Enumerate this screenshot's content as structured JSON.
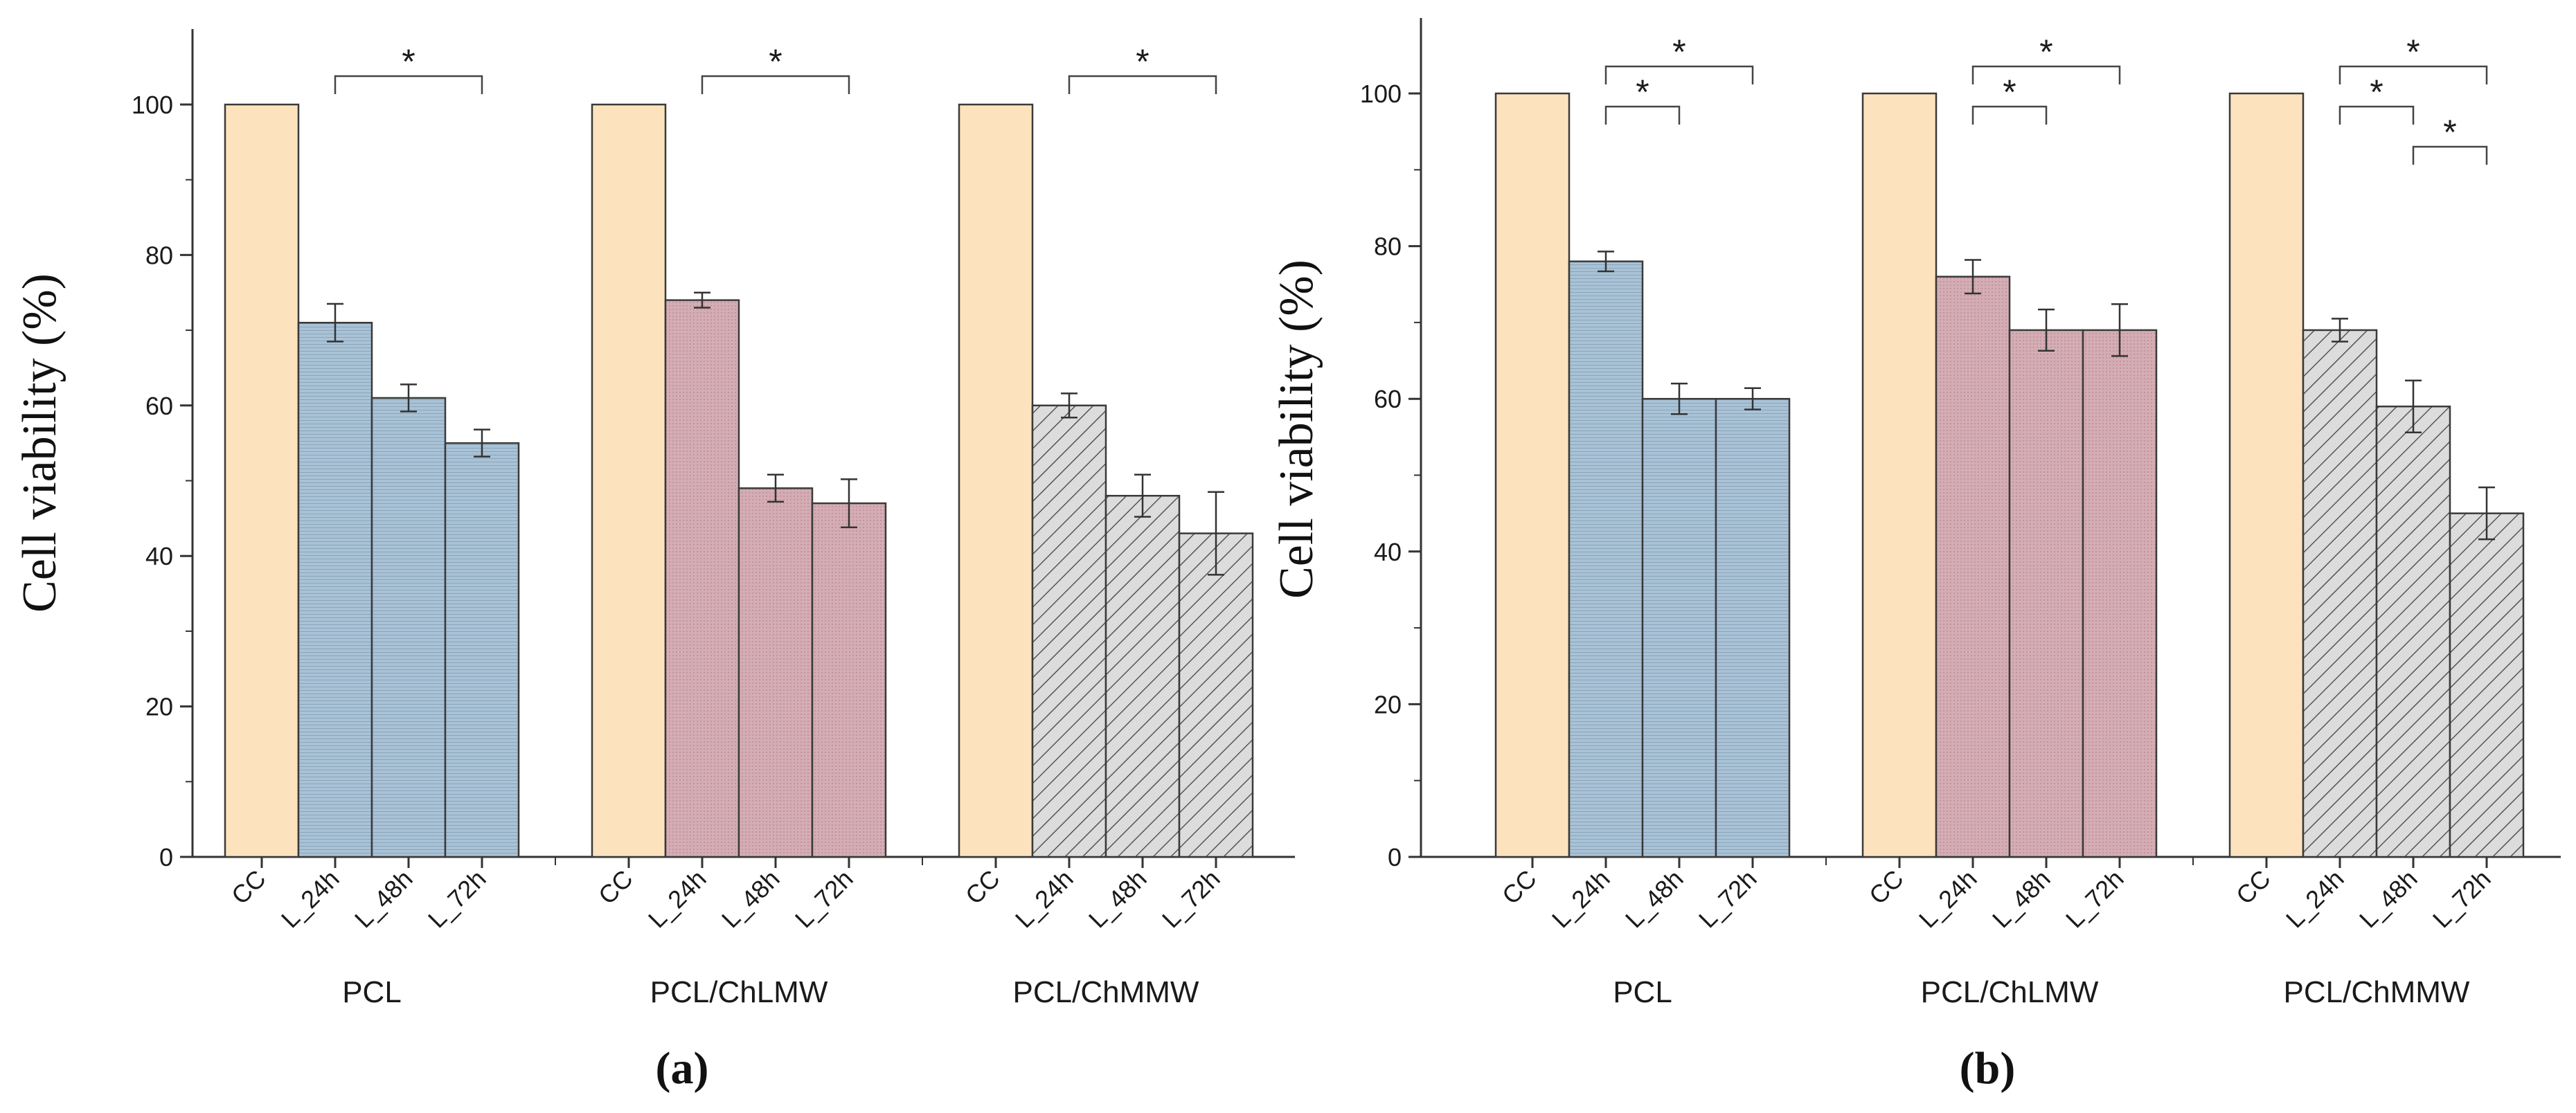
{
  "chart_data": [
    {
      "type": "bar",
      "panel_label": "(a)",
      "ylabel": "Cell viability (%)",
      "xlabel": "",
      "ylim": [
        0,
        110
      ],
      "yticks": [
        "0",
        "20",
        "40",
        "60",
        "80",
        "100"
      ],
      "grid": false,
      "groups": [
        {
          "name": "PCL",
          "pattern": "horizontal-lines",
          "color": "#a9c2d6",
          "bars": [
            {
              "label": "CC",
              "value": 100,
              "error": 0
            },
            {
              "label": "L_24h",
              "value": 71,
              "error": 2.5
            },
            {
              "label": "L_48h",
              "value": 61,
              "error": 1.8
            },
            {
              "label": "L_72h",
              "value": 55,
              "error": 1.8
            }
          ],
          "significance": [
            {
              "from": "L_24h",
              "to": "L_72h",
              "label": "*"
            }
          ]
        },
        {
          "name": "PCL/ChLMW",
          "pattern": "dots",
          "color": "#d4adb4",
          "bars": [
            {
              "label": "CC",
              "value": 100,
              "error": 0
            },
            {
              "label": "L_24h",
              "value": 74,
              "error": 1.0
            },
            {
              "label": "L_48h",
              "value": 49,
              "error": 1.8
            },
            {
              "label": "L_72h",
              "value": 47,
              "error": 3.2
            }
          ],
          "significance": [
            {
              "from": "L_24h",
              "to": "L_72h",
              "label": "*"
            }
          ]
        },
        {
          "name": "PCL/ChMMW",
          "pattern": "diagonal-hatch",
          "color": "#dcdcdc",
          "bars": [
            {
              "label": "CC",
              "value": 100,
              "error": 0
            },
            {
              "label": "L_24h",
              "value": 60,
              "error": 1.6
            },
            {
              "label": "L_48h",
              "value": 48,
              "error": 2.8
            },
            {
              "label": "L_72h",
              "value": 43,
              "error": 5.5
            }
          ],
          "significance": [
            {
              "from": "L_24h",
              "to": "L_72h",
              "label": "*"
            }
          ]
        }
      ]
    },
    {
      "type": "bar",
      "panel_label": "(b)",
      "ylabel": "Cell viability (%)",
      "xlabel": "",
      "ylim": [
        0,
        111
      ],
      "yticks": [
        "0",
        "20",
        "40",
        "60",
        "80",
        "100"
      ],
      "grid": false,
      "groups": [
        {
          "name": "PCL",
          "pattern": "horizontal-lines",
          "color": "#a9c2d6",
          "bars": [
            {
              "label": "CC",
              "value": 100,
              "error": 0
            },
            {
              "label": "L_24h",
              "value": 78,
              "error": 1.3
            },
            {
              "label": "L_48h",
              "value": 60,
              "error": 2.0
            },
            {
              "label": "L_72h",
              "value": 60,
              "error": 1.4
            }
          ],
          "significance": [
            {
              "from": "L_24h",
              "to": "L_48h",
              "label": "*"
            },
            {
              "from": "L_24h",
              "to": "L_72h",
              "label": "*"
            }
          ]
        },
        {
          "name": "PCL/ChLMW",
          "pattern": "dots",
          "color": "#d4adb4",
          "bars": [
            {
              "label": "CC",
              "value": 100,
              "error": 0
            },
            {
              "label": "L_24h",
              "value": 76,
              "error": 2.2
            },
            {
              "label": "L_48h",
              "value": 69,
              "error": 2.7
            },
            {
              "label": "L_72h",
              "value": 69,
              "error": 3.4
            }
          ],
          "significance": [
            {
              "from": "L_24h",
              "to": "L_48h",
              "label": "*"
            },
            {
              "from": "L_24h",
              "to": "L_72h",
              "label": "*"
            }
          ]
        },
        {
          "name": "PCL/ChMMW",
          "pattern": "diagonal-hatch",
          "color": "#dcdcdc",
          "bars": [
            {
              "label": "CC",
              "value": 100,
              "error": 0
            },
            {
              "label": "L_24h",
              "value": 69,
              "error": 1.5
            },
            {
              "label": "L_48h",
              "value": 59,
              "error": 3.4
            },
            {
              "label": "L_72h",
              "value": 45,
              "error": 3.4
            }
          ],
          "significance": [
            {
              "from": "L_24h",
              "to": "L_48h",
              "label": "*"
            },
            {
              "from": "L_24h",
              "to": "L_72h",
              "label": "*"
            },
            {
              "from": "L_48h",
              "to": "L_72h",
              "label": "*"
            }
          ]
        }
      ]
    }
  ],
  "colors": {
    "control": "#fde3bd",
    "axis": "#333333",
    "bar_edge": "#3a3a3a"
  }
}
